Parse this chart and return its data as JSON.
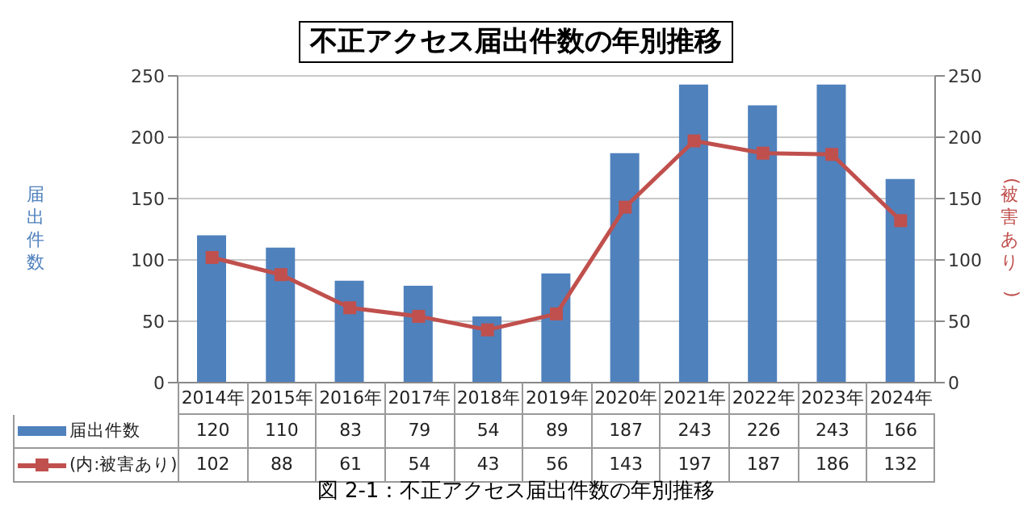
{
  "chart_data": {
    "type": "bar",
    "title": "不正アクセス届出件数の年別推移",
    "ylabel": "届出件数",
    "y2label": "(被害あり)",
    "categories": [
      "2014年",
      "2015年",
      "2016年",
      "2017年",
      "2018年",
      "2019年",
      "2020年",
      "2021年",
      "2022年",
      "2023年",
      "2024年"
    ],
    "series": [
      {
        "name": "届出件数",
        "color": "#4f81bd",
        "values": [
          120,
          110,
          83,
          79,
          54,
          89,
          187,
          243,
          226,
          243,
          166
        ]
      },
      {
        "name": "(内:被害あり)",
        "type": "line",
        "axis": "y2",
        "color": "#c0504d",
        "values": [
          102,
          88,
          61,
          54,
          43,
          56,
          143,
          197,
          187,
          186,
          132
        ]
      }
    ],
    "ylim": [
      0,
      250
    ],
    "yticks": [
      0,
      50,
      100,
      150,
      200,
      250
    ],
    "y2lim": [
      0,
      250
    ],
    "y2ticks": [
      0,
      50,
      100,
      150,
      200,
      250
    ],
    "grid": "y",
    "legend": "bottom",
    "data_labels": true,
    "marker": "square",
    "line_style": "solid",
    "annotations": [
      "図 2-1：不正アクセス届出件数の年別推移"
    ]
  }
}
